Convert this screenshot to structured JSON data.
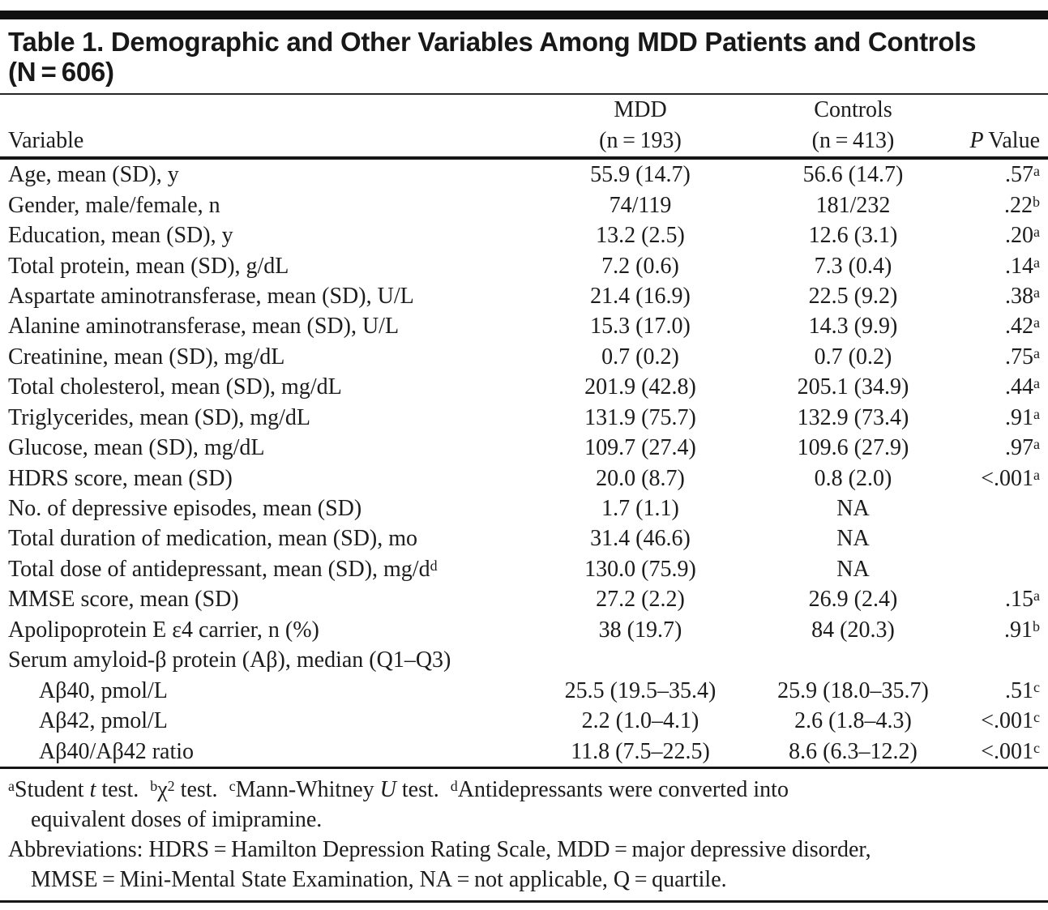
{
  "page": {
    "background": "#ffffff",
    "text_color": "#1c1c1c",
    "bar_color": "#101010"
  },
  "table": {
    "title": {
      "line1": "Table 1. Demographic and Other Variables Among MDD Patients and Controls",
      "line2": "(N = 606)"
    },
    "header": {
      "variable": "Variable",
      "mdd": {
        "line1": "MDD",
        "line2": "(n = 193)"
      },
      "controls": {
        "line1": "Controls",
        "line2": "(n = 413)"
      },
      "p": {
        "italic": "P",
        "rest": " Value"
      }
    },
    "rows": [
      {
        "label": "Age, mean (SD), y",
        "label_sup": "",
        "indent": false,
        "mdd": "55.9 (14.7)",
        "controls": "56.6 (14.7)",
        "p": ".57",
        "p_sup": "a"
      },
      {
        "label": "Gender, male/female, n",
        "label_sup": "",
        "indent": false,
        "mdd": "74/119",
        "controls": "181/232",
        "p": ".22",
        "p_sup": "b"
      },
      {
        "label": "Education, mean (SD), y",
        "label_sup": "",
        "indent": false,
        "mdd": "13.2 (2.5)",
        "controls": "12.6 (3.1)",
        "p": ".20",
        "p_sup": "a"
      },
      {
        "label": "Total protein, mean (SD), g/dL",
        "label_sup": "",
        "indent": false,
        "mdd": "7.2 (0.6)",
        "controls": "7.3 (0.4)",
        "p": ".14",
        "p_sup": "a"
      },
      {
        "label": "Aspartate aminotransferase, mean (SD), U/L",
        "label_sup": "",
        "indent": false,
        "mdd": "21.4 (16.9)",
        "controls": "22.5 (9.2)",
        "p": ".38",
        "p_sup": "a"
      },
      {
        "label": "Alanine aminotransferase, mean (SD), U/L",
        "label_sup": "",
        "indent": false,
        "mdd": "15.3 (17.0)",
        "controls": "14.3 (9.9)",
        "p": ".42",
        "p_sup": "a"
      },
      {
        "label": "Creatinine, mean (SD), mg/dL",
        "label_sup": "",
        "indent": false,
        "mdd": "0.7 (0.2)",
        "controls": "0.7 (0.2)",
        "p": ".75",
        "p_sup": "a"
      },
      {
        "label": "Total cholesterol, mean (SD), mg/dL",
        "label_sup": "",
        "indent": false,
        "mdd": "201.9 (42.8)",
        "controls": "205.1 (34.9)",
        "p": ".44",
        "p_sup": "a"
      },
      {
        "label": "Triglycerides, mean (SD), mg/dL",
        "label_sup": "",
        "indent": false,
        "mdd": "131.9 (75.7)",
        "controls": "132.9 (73.4)",
        "p": ".91",
        "p_sup": "a"
      },
      {
        "label": "Glucose, mean (SD), mg/dL",
        "label_sup": "",
        "indent": false,
        "mdd": "109.7 (27.4)",
        "controls": "109.6 (27.9)",
        "p": ".97",
        "p_sup": "a"
      },
      {
        "label": "HDRS score, mean (SD)",
        "label_sup": "",
        "indent": false,
        "mdd": "20.0 (8.7)",
        "controls": "0.8 (2.0)",
        "p": "<.001",
        "p_sup": "a"
      },
      {
        "label": "No. of depressive episodes, mean (SD)",
        "label_sup": "",
        "indent": false,
        "mdd": "1.7 (1.1)",
        "controls": "NA",
        "p": "",
        "p_sup": ""
      },
      {
        "label": "Total duration of medication, mean (SD), mo",
        "label_sup": "",
        "indent": false,
        "mdd": "31.4 (46.6)",
        "controls": "NA",
        "p": "",
        "p_sup": ""
      },
      {
        "label": "Total dose of antidepressant, mean (SD), mg/d",
        "label_sup": "d",
        "indent": false,
        "mdd": "130.0 (75.9)",
        "controls": "NA",
        "p": "",
        "p_sup": ""
      },
      {
        "label": "MMSE score, mean (SD)",
        "label_sup": "",
        "indent": false,
        "mdd": "27.2 (2.2)",
        "controls": "26.9 (2.4)",
        "p": ".15",
        "p_sup": "a"
      },
      {
        "label": "Apolipoprotein E ε4 carrier, n (%)",
        "label_sup": "",
        "indent": false,
        "mdd": "38 (19.7)",
        "controls": "84 (20.3)",
        "p": ".91",
        "p_sup": "b"
      },
      {
        "label": "Serum amyloid-β protein (Aβ), median (Q1–Q3)",
        "label_sup": "",
        "indent": false,
        "mdd": "",
        "controls": "",
        "p": "",
        "p_sup": ""
      },
      {
        "label": "Aβ40, pmol/L",
        "label_sup": "",
        "indent": true,
        "mdd": "25.5 (19.5–35.4)",
        "controls": "25.9 (18.0–35.7)",
        "p": ".51",
        "p_sup": "c"
      },
      {
        "label": "Aβ42, pmol/L",
        "label_sup": "",
        "indent": true,
        "mdd": "2.2 (1.0–4.1)",
        "controls": "2.6 (1.8–4.3)",
        "p": "<.001",
        "p_sup": "c"
      },
      {
        "label": "Aβ40/Aβ42 ratio",
        "label_sup": "",
        "indent": true,
        "mdd": "11.8 (7.5–22.5)",
        "controls": "8.6 (6.3–12.2)",
        "p": "<.001",
        "p_sup": "c"
      }
    ]
  },
  "footnotes": {
    "lines": [
      {
        "indent": false,
        "segments": [
          {
            "t": "sup",
            "v": "a"
          },
          {
            "t": "text",
            "v": "Student "
          },
          {
            "t": "i",
            "v": "t"
          },
          {
            "t": "text",
            "v": " test. "
          },
          {
            "t": "sup",
            "v": "b"
          },
          {
            "t": "text",
            "v": "χ"
          },
          {
            "t": "sup",
            "v": "2"
          },
          {
            "t": "text",
            "v": " test. "
          },
          {
            "t": "sup",
            "v": "c"
          },
          {
            "t": "text",
            "v": "Mann-Whitney "
          },
          {
            "t": "i",
            "v": "U"
          },
          {
            "t": "text",
            "v": " test. "
          },
          {
            "t": "sup",
            "v": "d"
          },
          {
            "t": "text",
            "v": "Antidepressants were converted into"
          }
        ]
      },
      {
        "indent": true,
        "segments": [
          {
            "t": "text",
            "v": "equivalent doses of imipramine."
          }
        ]
      },
      {
        "indent": false,
        "segments": [
          {
            "t": "text",
            "v": "Abbreviations: HDRS = Hamilton Depression Rating Scale, MDD = major depressive disorder,"
          }
        ]
      },
      {
        "indent": true,
        "segments": [
          {
            "t": "text",
            "v": "MMSE = Mini-Mental State Examination, NA = not applicable, Q = quartile."
          }
        ]
      }
    ]
  }
}
